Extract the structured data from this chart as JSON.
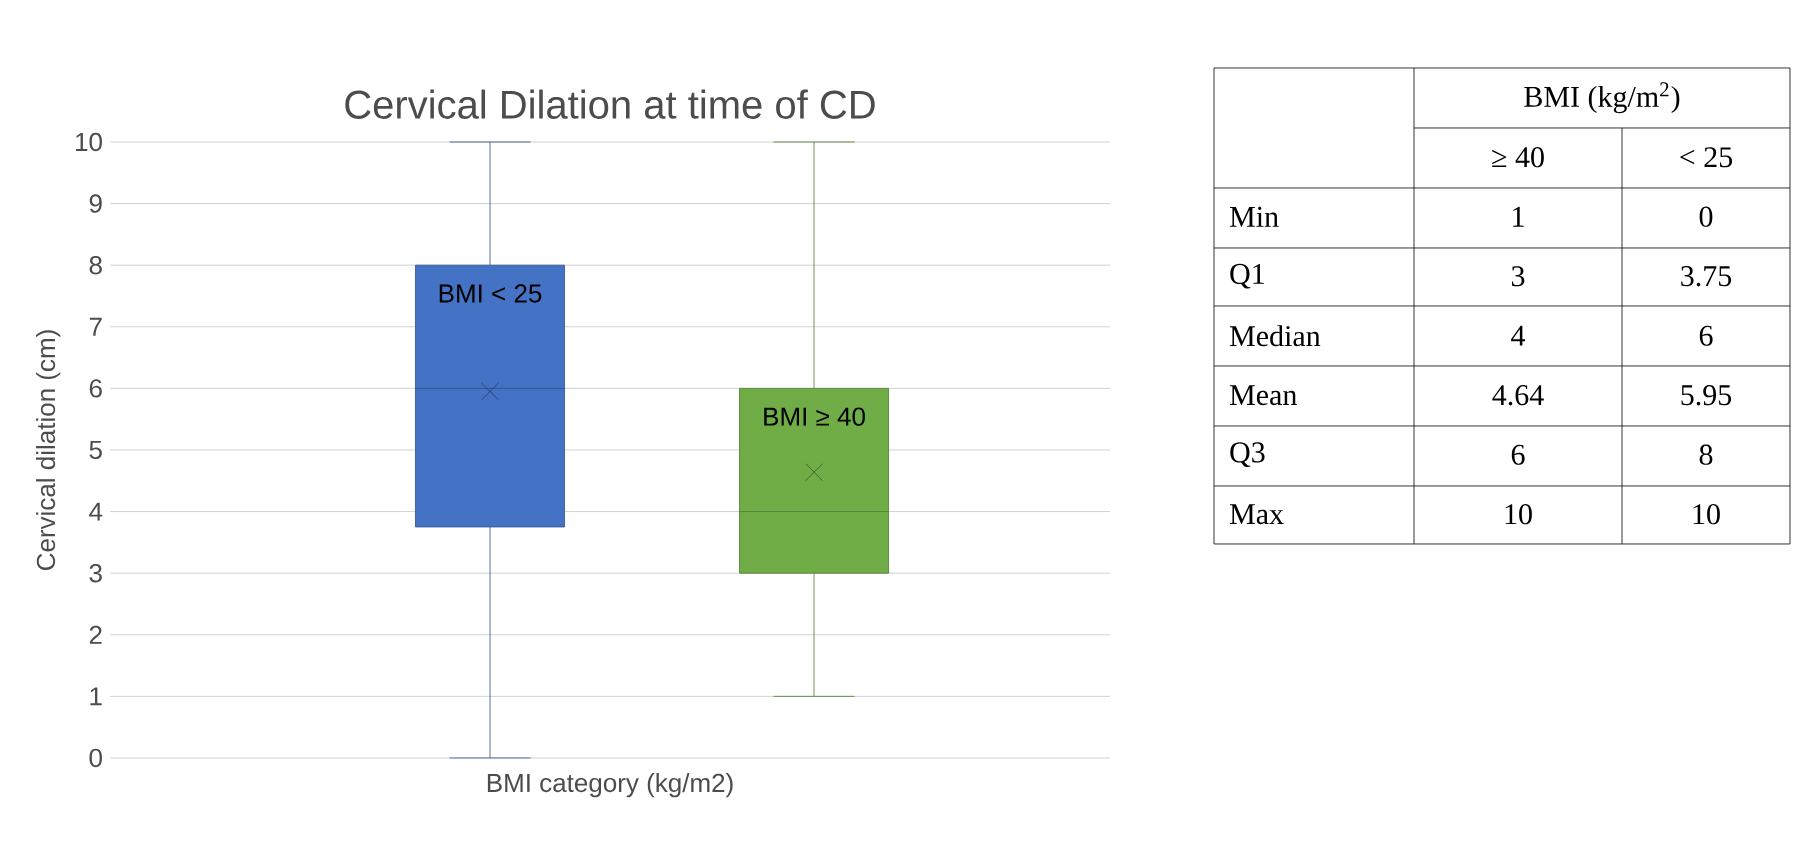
{
  "chart_data": {
    "type": "box",
    "title": "Cervical Dilation at time of CD",
    "xlabel": "BMI category (kg/m2)",
    "ylabel": "Cervical dilation (cm)",
    "categories": [
      null
    ],
    "series": [
      {
        "name": "BMI < 25",
        "color": "#4472c4",
        "boxes": [
          {
            "low": 0,
            "q1": 3.75,
            "median": 6,
            "q3": 8,
            "high": 10,
            "mean": 5.95
          }
        ]
      },
      {
        "name": "BMI ≥ 40",
        "color": "#70ad47",
        "boxes": [
          {
            "low": 1,
            "q1": 3,
            "median": 4,
            "q3": 6,
            "high": 10,
            "mean": 4.64
          }
        ]
      }
    ],
    "ylim": [
      0,
      10
    ],
    "yticks": [
      0,
      1,
      2,
      3,
      4,
      5,
      6,
      7,
      8,
      9,
      10
    ],
    "grid": "y",
    "marker": "cross",
    "data_labels": true,
    "annotations": [
      "BMI (kg/m$^{2}$)",
      "≥ 40",
      "< 25",
      "Min",
      "1",
      "0",
      "Q1",
      "3",
      "3.75",
      "Median",
      "4",
      "6",
      "Mean",
      "4.64",
      "5.95",
      "Q3",
      "6",
      "8",
      "Max",
      "10",
      "10"
    ]
  }
}
